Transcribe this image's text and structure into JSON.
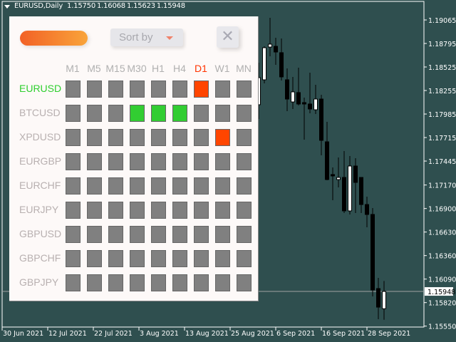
{
  "header": {
    "symbol": "EURUSD,Daily",
    "open": "1.15750",
    "high": "1.16068",
    "low": "1.15623",
    "close": "1.15948"
  },
  "panel": {
    "sort_label": "Sort by",
    "close_label": "✕",
    "timeframes": [
      {
        "label": "M1"
      },
      {
        "label": "M5"
      },
      {
        "label": "M15"
      },
      {
        "label": "M30"
      },
      {
        "label": "H1"
      },
      {
        "label": "H4"
      },
      {
        "label": "D1",
        "active": true
      },
      {
        "label": "W1"
      },
      {
        "label": "MN"
      }
    ],
    "colors": {
      "neutral": "#808080",
      "bull": "#32cd32",
      "bear": "#ff4500",
      "active_symbol": "#2fcf2f",
      "active_tf": "#ff3300",
      "symbol": "#b8b0b0"
    },
    "rows": [
      {
        "symbol": "EURUSD",
        "active": true,
        "signals": [
          "n",
          "n",
          "n",
          "n",
          "n",
          "n",
          "bear",
          "n",
          "n"
        ]
      },
      {
        "symbol": "BTCUSD",
        "signals": [
          "n",
          "n",
          "n",
          "bull",
          "bull",
          "bull",
          "n",
          "n",
          "n"
        ]
      },
      {
        "symbol": "XPDUSD",
        "signals": [
          "n",
          "n",
          "n",
          "n",
          "n",
          "n",
          "n",
          "bear",
          "n"
        ]
      },
      {
        "symbol": "EURGBP",
        "signals": [
          "n",
          "n",
          "n",
          "n",
          "n",
          "n",
          "n",
          "n",
          "n"
        ]
      },
      {
        "symbol": "EURCHF",
        "signals": [
          "n",
          "n",
          "n",
          "n",
          "n",
          "n",
          "n",
          "n",
          "n"
        ]
      },
      {
        "symbol": "EURJPY",
        "signals": [
          "n",
          "n",
          "n",
          "n",
          "n",
          "n",
          "n",
          "n",
          "n"
        ]
      },
      {
        "symbol": "GBPUSD",
        "signals": [
          "n",
          "n",
          "n",
          "n",
          "n",
          "n",
          "n",
          "n",
          "n"
        ]
      },
      {
        "symbol": "GBPCHF",
        "signals": [
          "n",
          "n",
          "n",
          "n",
          "n",
          "n",
          "n",
          "n",
          "n"
        ]
      },
      {
        "symbol": "GBPJPY",
        "signals": [
          "n",
          "n",
          "n",
          "n",
          "n",
          "n",
          "n",
          "n",
          "n"
        ]
      }
    ]
  },
  "chart_data": {
    "type": "candlestick",
    "background": "#2f4f4f",
    "current_price": "1.15948",
    "y_ticks": [
      "1.19065",
      "1.18795",
      "1.18525",
      "1.18255",
      "1.17985",
      "1.17715",
      "1.17445",
      "1.17170",
      "1.16900",
      "1.16630",
      "1.16360",
      "1.16090",
      "1.15820",
      "1.15550"
    ],
    "x_ticks": [
      "30 Jun 2021",
      "12 Jul 2021",
      "22 Jul 2021",
      "3 Aug 2021",
      "13 Aug 2021",
      "25 Aug 2021",
      "6 Sep 2021",
      "16 Sep 2021",
      "28 Sep 2021"
    ],
    "ylim": [
      1.1551,
      1.1915
    ],
    "candles": [
      [
        1.18092,
        1.18574,
        1.17928,
        1.18402
      ],
      [
        1.18378,
        1.18762,
        1.18337,
        1.18746
      ],
      [
        1.18754,
        1.1909,
        1.18648,
        1.18787
      ],
      [
        1.18762,
        1.1886,
        1.1855,
        1.18697
      ],
      [
        1.18689,
        1.18852,
        1.1837,
        1.18411
      ],
      [
        1.18378,
        1.18509,
        1.18018,
        1.18157
      ],
      [
        1.18124,
        1.18411,
        1.18043,
        1.18239
      ],
      [
        1.18231,
        1.18517,
        1.18083,
        1.181
      ],
      [
        1.18116,
        1.18173,
        1.17691,
        1.181
      ],
      [
        1.181,
        1.1846,
        1.17993,
        1.18043
      ],
      [
        1.18034,
        1.18321,
        1.17985,
        1.18157
      ],
      [
        1.18157,
        1.18206,
        1.17511,
        1.17683
      ],
      [
        1.17666,
        1.17895,
        1.17225,
        1.17233
      ],
      [
        1.1729,
        1.17372,
        1.16995,
        1.17274
      ],
      [
        1.17233,
        1.17486,
        1.17143,
        1.17257
      ],
      [
        1.17257,
        1.1756,
        1.16848,
        1.16873
      ],
      [
        1.16873,
        1.17503,
        1.16832,
        1.17388
      ],
      [
        1.17388,
        1.17478,
        1.16848,
        1.172
      ],
      [
        1.17257,
        1.17257,
        1.16848,
        1.16946
      ],
      [
        1.16946,
        1.17036,
        1.16685,
        1.16832
      ],
      [
        1.16832,
        1.16905,
        1.15891,
        1.15965
      ],
      [
        1.15981,
        1.16104,
        1.15629,
        1.15768
      ],
      [
        1.1575,
        1.16068,
        1.15623,
        1.15948
      ]
    ]
  }
}
